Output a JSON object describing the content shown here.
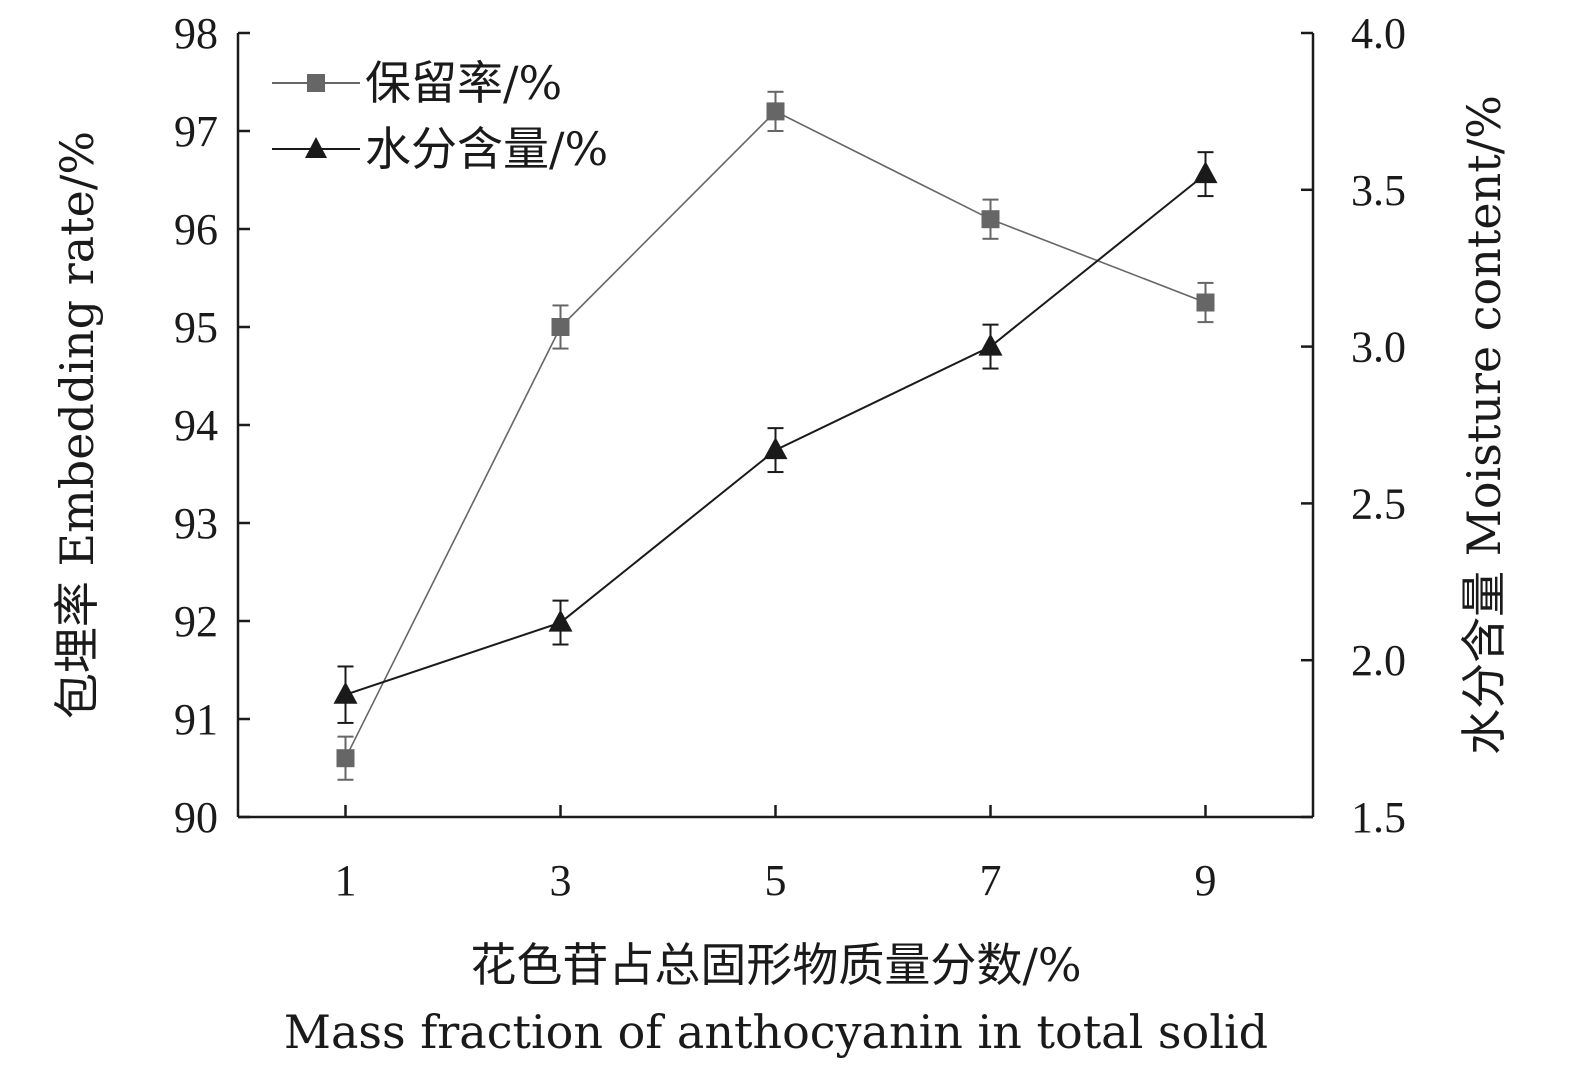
{
  "chart_data": {
    "type": "line",
    "x": [
      1,
      3,
      5,
      7,
      9
    ],
    "xlabel_cn": "花色苷占总固形物质量分数/%",
    "xlabel_en": "Mass fraction of anthocyanin in total solid",
    "ylabel_left": "包埋率 Embedding rate/%",
    "ylabel_right": "水分含量 Moisture content/%",
    "ylim_left": [
      90,
      98
    ],
    "ylim_right": [
      1.5,
      4.0
    ],
    "xticks": [
      "1",
      "3",
      "5",
      "7",
      "9"
    ],
    "yticks_left": [
      "90",
      "91",
      "92",
      "93",
      "94",
      "95",
      "96",
      "97",
      "98"
    ],
    "yticks_right": [
      "1.5",
      "2.0",
      "2.5",
      "3.0",
      "3.5",
      "4.0"
    ],
    "legend_position": "top-left",
    "grid": false,
    "series": [
      {
        "name": "保留率/%",
        "axis": "left",
        "marker": "square",
        "color": "#666666",
        "values": [
          90.6,
          95.0,
          97.2,
          96.1,
          95.25
        ],
        "errors": [
          0.22,
          0.22,
          0.2,
          0.2,
          0.2
        ]
      },
      {
        "name": "水分含量/%",
        "axis": "right",
        "marker": "triangle",
        "color": "#1a1a1a",
        "values": [
          1.89,
          2.12,
          2.67,
          3.0,
          3.55
        ],
        "errors": [
          0.09,
          0.07,
          0.07,
          0.07,
          0.07
        ]
      }
    ]
  }
}
